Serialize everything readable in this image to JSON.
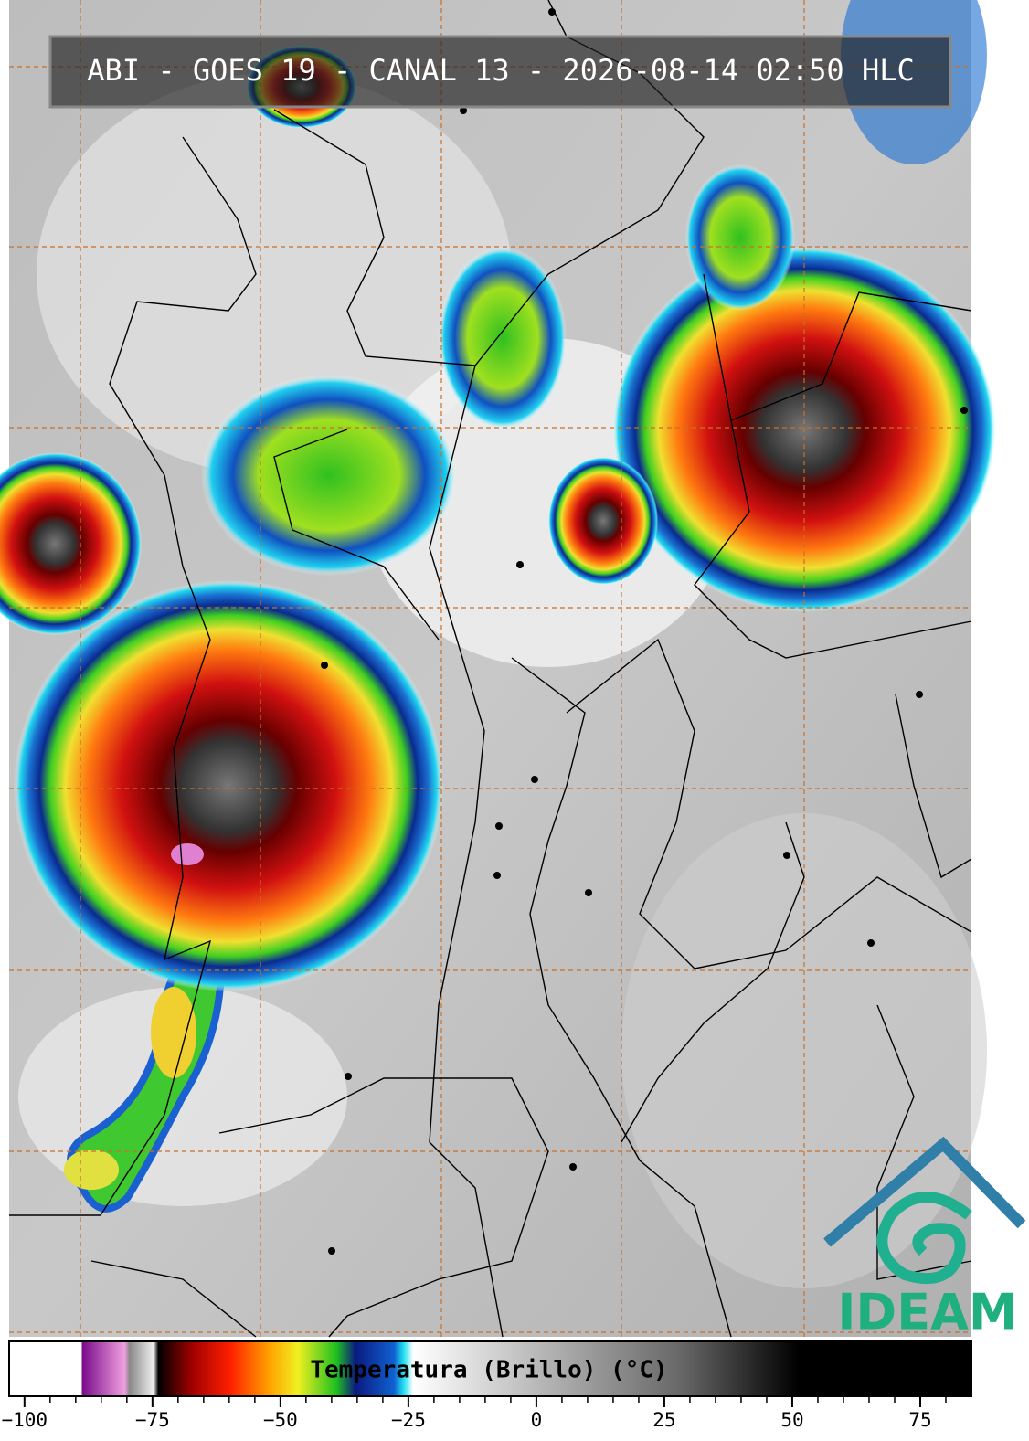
{
  "title": "ABI - GOES 19 - CANAL 13 - 2026-08-14 02:50 HLC",
  "logo": "IDEAM",
  "colorbar": {
    "label": "Temperatura (Brillo) (°C)",
    "xlim": [
      -103,
      85
    ],
    "xticks": [
      {
        "value": -100,
        "label": "−100"
      },
      {
        "value": -75,
        "label": "−75"
      },
      {
        "value": -50,
        "label": "−50"
      },
      {
        "value": -25,
        "label": "−25"
      },
      0,
      25,
      50,
      75
    ]
  }
}
